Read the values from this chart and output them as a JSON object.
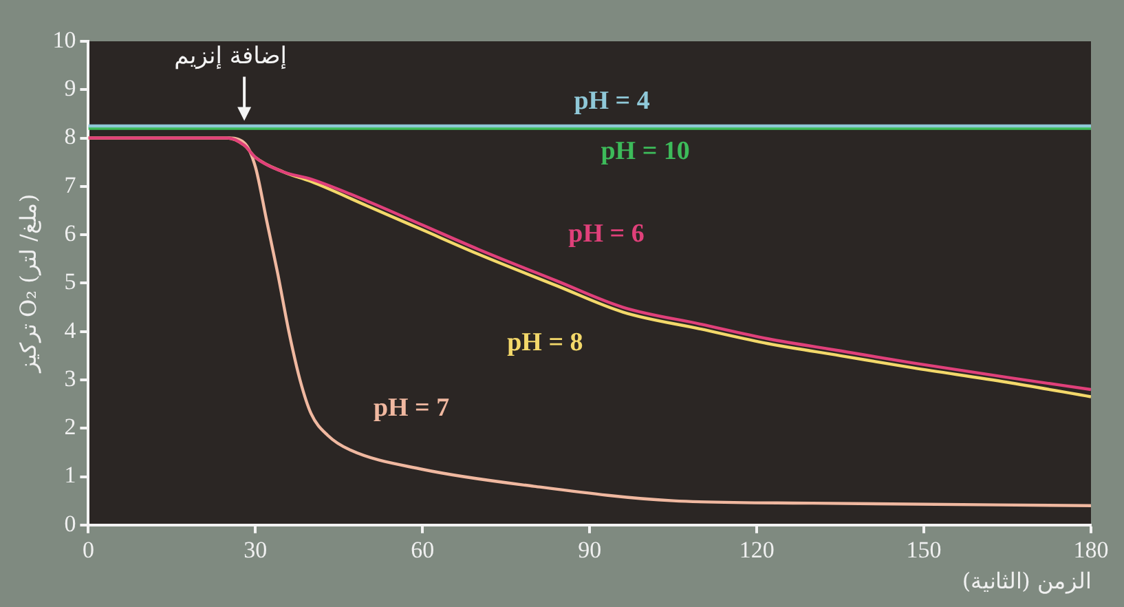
{
  "chart_data": {
    "type": "line",
    "xlabel": "الزمن (الثانية)",
    "ylabel": "تركيز O₂ (ملغ/ لتر)",
    "xlim": [
      0,
      180
    ],
    "xticks": [
      0,
      30,
      60,
      90,
      120,
      150,
      180
    ],
    "ylim": [
      0,
      10
    ],
    "yticks": [
      0,
      1,
      2,
      3,
      4,
      5,
      6,
      7,
      8,
      9,
      10
    ],
    "grid": false,
    "legend": false,
    "marker": "none",
    "line_style": "solid",
    "annotations": [
      {
        "text": "إضافة إنزيم",
        "x": 28,
        "y": 8.3
      }
    ],
    "series": [
      {
        "name": "pH = 4",
        "color": "#8fc8d8",
        "x": [
          0,
          180
        ],
        "values": [
          8.25,
          8.25
        ]
      },
      {
        "name": "pH = 10",
        "color": "#3dbb5a",
        "x": [
          0,
          180
        ],
        "values": [
          8.2,
          8.2
        ]
      },
      {
        "name": "pH = 6",
        "color": "#e0407a",
        "x": [
          0,
          25,
          28,
          30,
          35,
          40,
          50,
          60,
          70,
          84,
          96,
          110,
          122,
          135,
          148,
          165,
          180
        ],
        "values": [
          8,
          8,
          7.85,
          7.6,
          7.3,
          7.15,
          6.7,
          6.2,
          5.7,
          5.05,
          4.5,
          4.15,
          3.85,
          3.6,
          3.35,
          3.05,
          2.8
        ]
      },
      {
        "name": "pH = 8",
        "color": "#f3d86a",
        "x": [
          0,
          25,
          28,
          30,
          35,
          40,
          50,
          60,
          70,
          84,
          96,
          110,
          122,
          135,
          148,
          165,
          180
        ],
        "values": [
          8,
          8,
          7.85,
          7.6,
          7.3,
          7.1,
          6.6,
          6.1,
          5.6,
          4.95,
          4.4,
          4.05,
          3.75,
          3.5,
          3.25,
          2.95,
          2.65
        ]
      },
      {
        "name": "pH = 7",
        "color": "#f0b8a0",
        "x": [
          0,
          25,
          28,
          30,
          32,
          34,
          36,
          38,
          40,
          43,
          47,
          60,
          80,
          105,
          130,
          180
        ],
        "values": [
          8,
          8,
          7.9,
          7.4,
          6.3,
          5.2,
          4,
          3,
          2.3,
          1.85,
          1.55,
          1.15,
          0.8,
          0.5,
          0.45,
          0.4
        ]
      }
    ]
  }
}
